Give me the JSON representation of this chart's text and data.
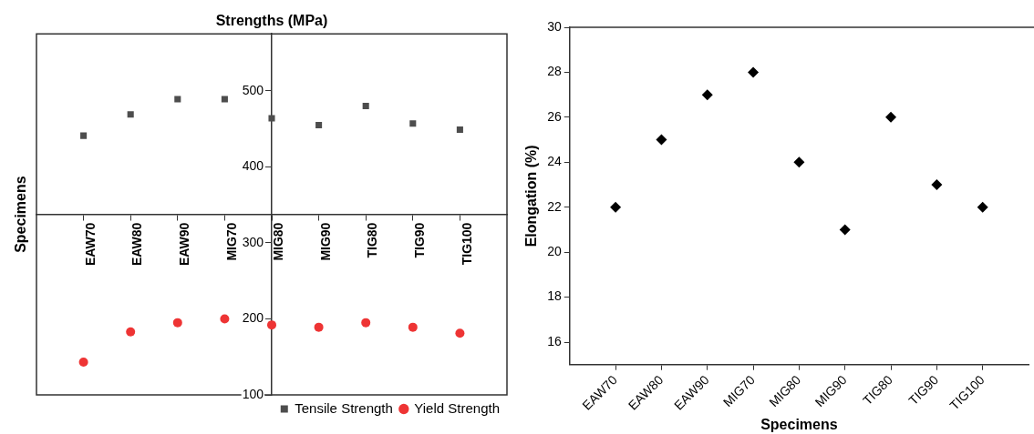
{
  "chart_data": [
    {
      "type": "scatter",
      "title": "Strengths (MPa)",
      "ylabel": "Specimens",
      "categories": [
        "EAW70",
        "EAW80",
        "EAW90",
        "MIG70",
        "MIG80",
        "MIG90",
        "TIG80",
        "TIG90",
        "TIG100"
      ],
      "series": [
        {
          "name": "Tensile Strength",
          "color": "#4d4d4d",
          "marker": "square",
          "values": [
            441,
            469,
            489,
            489,
            464,
            455,
            480,
            457,
            449
          ]
        },
        {
          "name": "Yield Strength",
          "color": "#ee3434",
          "marker": "circle",
          "values": [
            143,
            183,
            195,
            200,
            192,
            189,
            195,
            189,
            181
          ]
        }
      ],
      "ylim": [
        100,
        575
      ],
      "yticks": [
        100,
        200,
        300,
        400,
        500
      ],
      "grid": false,
      "legend": "bottom right"
    },
    {
      "type": "scatter",
      "xlabel": "Specimens",
      "ylabel": "Elongation (%)",
      "categories": [
        "EAW70",
        "EAW80",
        "EAW90",
        "MIG70",
        "MIG80",
        "MIG90",
        "TIG80",
        "TIG90",
        "TIG100"
      ],
      "series": [
        {
          "color": "#000000",
          "values": [
            22,
            25,
            27,
            28,
            24,
            21,
            26,
            23,
            22
          ]
        }
      ],
      "ylim": [
        15,
        30
      ],
      "yticks": [
        16,
        18,
        20,
        22,
        24,
        26,
        28,
        30
      ],
      "marker": "diamond",
      "grid": false,
      "legend": false
    }
  ]
}
